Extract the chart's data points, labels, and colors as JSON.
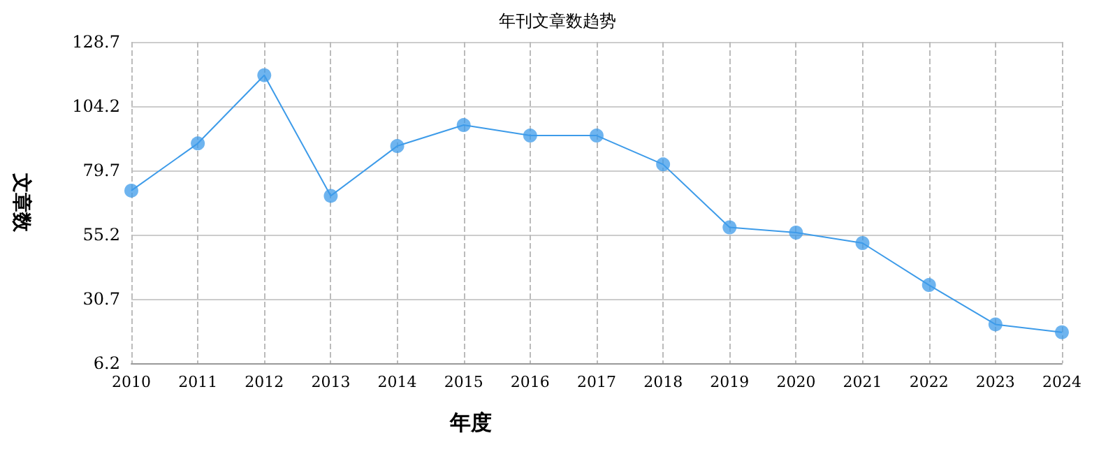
{
  "chart_data": {
    "type": "line",
    "title": "年刊文章数趋势",
    "xlabel": "年度",
    "ylabel": "文章数",
    "categories": [
      "2010",
      "2011",
      "2012",
      "2013",
      "2014",
      "2015",
      "2016",
      "2017",
      "2018",
      "2019",
      "2020",
      "2021",
      "2022",
      "2023",
      "2024"
    ],
    "series": [
      {
        "color": "#3d9be9",
        "values": [
          72,
          90,
          116,
          70,
          89,
          97,
          93,
          93,
          82,
          58,
          56,
          52,
          36,
          21,
          18
        ]
      }
    ],
    "ylim": [
      6.2,
      128.7
    ],
    "yticks": [
      6.2,
      30.7,
      55.2,
      79.7,
      104.2,
      128.7
    ],
    "grid": true,
    "marker": "circle",
    "line_style": "solid"
  }
}
